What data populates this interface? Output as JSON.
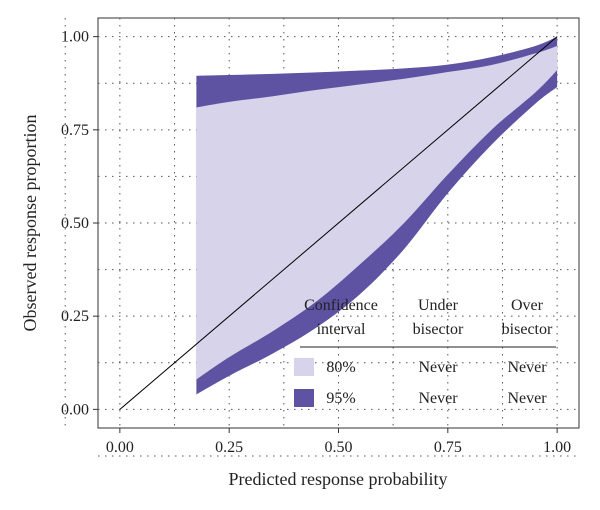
{
  "chart_data": {
    "type": "area",
    "xlabel": "Predicted response probability",
    "ylabel": "Observed response proportion",
    "xlim": [
      -0.05,
      1.05
    ],
    "ylim": [
      -0.05,
      1.05
    ],
    "xticks": [
      "0.00",
      "0.25",
      "0.50",
      "0.75",
      "1.00"
    ],
    "yticks": [
      "0.00",
      "0.25",
      "0.50",
      "0.75",
      "1.00"
    ],
    "grid": "dotted",
    "reference_line": {
      "from": [
        0,
        0
      ],
      "to": [
        1,
        1
      ]
    },
    "x": [
      0.175,
      0.25,
      0.35,
      0.45,
      0.55,
      0.65,
      0.75,
      0.85,
      0.95,
      1.0
    ],
    "bands": [
      {
        "name": "95%",
        "color": "#5e53a2",
        "upper": [
          0.895,
          0.897,
          0.9,
          0.904,
          0.909,
          0.915,
          0.925,
          0.945,
          0.975,
          1.0
        ],
        "lower": [
          0.04,
          0.09,
          0.15,
          0.22,
          0.31,
          0.43,
          0.58,
          0.71,
          0.82,
          0.865
        ]
      },
      {
        "name": "80%",
        "color": "#d6d3ea",
        "upper": [
          0.81,
          0.825,
          0.84,
          0.857,
          0.872,
          0.887,
          0.905,
          0.924,
          0.955,
          0.975
        ],
        "lower": [
          0.08,
          0.14,
          0.21,
          0.29,
          0.39,
          0.5,
          0.63,
          0.75,
          0.85,
          0.91
        ]
      }
    ],
    "legend": {
      "placement": "bottom-right",
      "headers": [
        "Confidence\ninterval",
        "Under\nbisector",
        "Over\nbisector"
      ],
      "rows": [
        {
          "label": "80%",
          "color": "#d6d3ea",
          "under": "Never",
          "over": "Never"
        },
        {
          "label": "95%",
          "color": "#5e53a2",
          "under": "Never",
          "over": "Never"
        }
      ]
    }
  }
}
